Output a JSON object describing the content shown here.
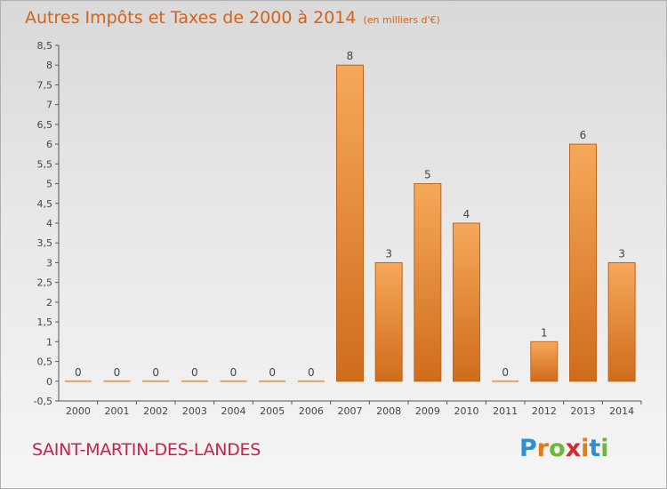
{
  "header": {
    "title": "Autres Impôts et Taxes de 2000 à 2014",
    "unit": "(en milliers d'€)"
  },
  "footer": {
    "commune": "SAINT-MARTIN-DES-LANDES",
    "logo_letters": [
      "P",
      "r",
      "o",
      "x",
      "i",
      "t",
      "i"
    ],
    "logo_colors": [
      "#2e8fd6",
      "#e07a1a",
      "#6bb83a",
      "#d7282f",
      "#e07a1a",
      "#2e8fd6",
      "#6bb83a"
    ]
  },
  "colors": {
    "bar_top": "#f6a85a",
    "bar_bottom": "#cf6c1c",
    "title": "#d4621a",
    "commune": "#cc1f4a"
  },
  "chart_data": {
    "type": "bar",
    "categories": [
      "2000",
      "2001",
      "2002",
      "2003",
      "2004",
      "2005",
      "2006",
      "2007",
      "2008",
      "2009",
      "2010",
      "2011",
      "2012",
      "2013",
      "2014"
    ],
    "values": [
      0,
      0,
      0,
      0,
      0,
      0,
      0,
      8,
      3,
      5,
      4,
      0,
      1,
      6,
      3
    ],
    "value_labels": [
      "0",
      "0",
      "0",
      "0",
      "0",
      "0",
      "0",
      "8",
      "3",
      "5",
      "4",
      "0",
      "1",
      "6",
      "3"
    ],
    "yticks": [
      "-0,5",
      "0",
      "0,5",
      "1",
      "1,5",
      "2",
      "2,5",
      "3",
      "3,5",
      "4",
      "4,5",
      "5",
      "5,5",
      "6",
      "6,5",
      "7",
      "7,5",
      "8",
      "8,5"
    ],
    "ylim": [
      -0.5,
      8.5
    ],
    "grid": false
  }
}
